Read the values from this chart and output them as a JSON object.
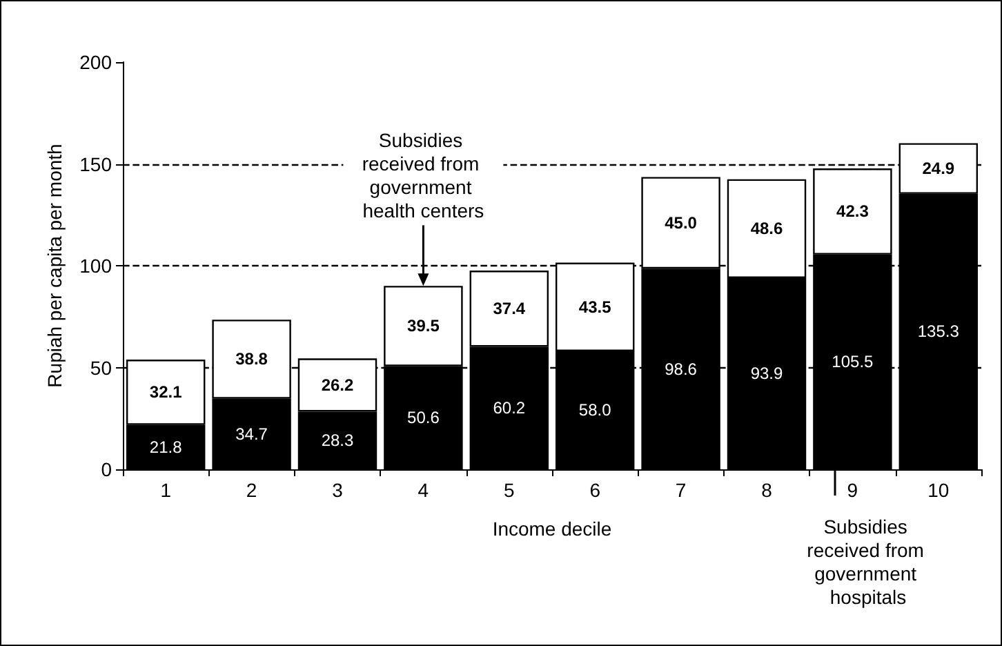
{
  "chart_data": {
    "type": "bar",
    "stacked": true,
    "xlabel": "Income decile",
    "ylabel": "Rupiah per capita per month",
    "categories": [
      "1",
      "2",
      "3",
      "4",
      "5",
      "6",
      "7",
      "8",
      "9",
      "10"
    ],
    "series": [
      {
        "color": "#000000",
        "values": [
          21.8,
          34.7,
          28.3,
          50.6,
          60.2,
          58.0,
          98.6,
          93.9,
          105.5,
          135.3
        ],
        "value_labels": [
          "21.8",
          "34.7",
          "28.3",
          "50.6",
          "60.2",
          "58.0",
          "98.6",
          "93.9",
          "105.5",
          "135.3"
        ]
      },
      {
        "color": "#ffffff",
        "values": [
          32.1,
          38.8,
          26.2,
          39.5,
          37.4,
          43.5,
          45.0,
          48.6,
          42.3,
          24.9
        ],
        "value_labels": [
          "32.1",
          "38.8",
          "26.2",
          "39.5",
          "37.4",
          "43.5",
          "45.0",
          "48.6",
          "42.3",
          "24.9"
        ]
      }
    ],
    "ylim": [
      0,
      200
    ],
    "yticks": [
      0,
      50,
      100,
      150,
      200
    ],
    "ref_lines": [
      {
        "axis": "y",
        "value": 50,
        "line_style": "dashed"
      },
      {
        "axis": "y",
        "value": 100,
        "line_style": "dashed"
      },
      {
        "axis": "y",
        "value": 150,
        "line_style": "dashed"
      }
    ],
    "annotations": [
      {
        "text": "Subsidies received from government health centers",
        "x": "4",
        "y": 90.1
      },
      "Subsidies received from government hospitals"
    ]
  }
}
